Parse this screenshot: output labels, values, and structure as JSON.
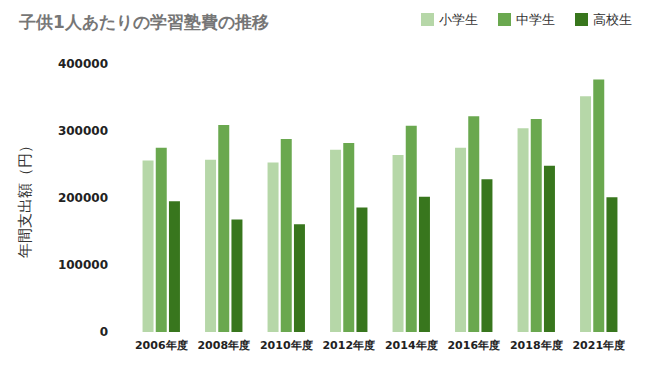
{
  "chart_data": {
    "type": "bar",
    "title": "子供1人あたりの学習塾費の推移",
    "y_label": "年間支出額（円）",
    "categories": [
      "2006年度",
      "2008年度",
      "2010年度",
      "2012年度",
      "2014年度",
      "2016年度",
      "2018年度",
      "2021年度"
    ],
    "series": [
      {
        "name": "小学生",
        "color": "#b6d7a8",
        "values": [
          256000,
          257000,
          253000,
          272000,
          264000,
          275000,
          304000,
          352000
        ]
      },
      {
        "name": "中学生",
        "color": "#6aa84f",
        "values": [
          275000,
          309000,
          288000,
          282000,
          308000,
          322000,
          318000,
          377000
        ]
      },
      {
        "name": "高校生",
        "color": "#38761d",
        "values": [
          195000,
          168000,
          161000,
          186000,
          202000,
          228000,
          248000,
          201000
        ]
      }
    ],
    "ylim": [
      0,
      400000
    ],
    "yticks": [
      0,
      100000,
      200000,
      300000,
      400000
    ],
    "grid": false,
    "legend": "top-right"
  }
}
